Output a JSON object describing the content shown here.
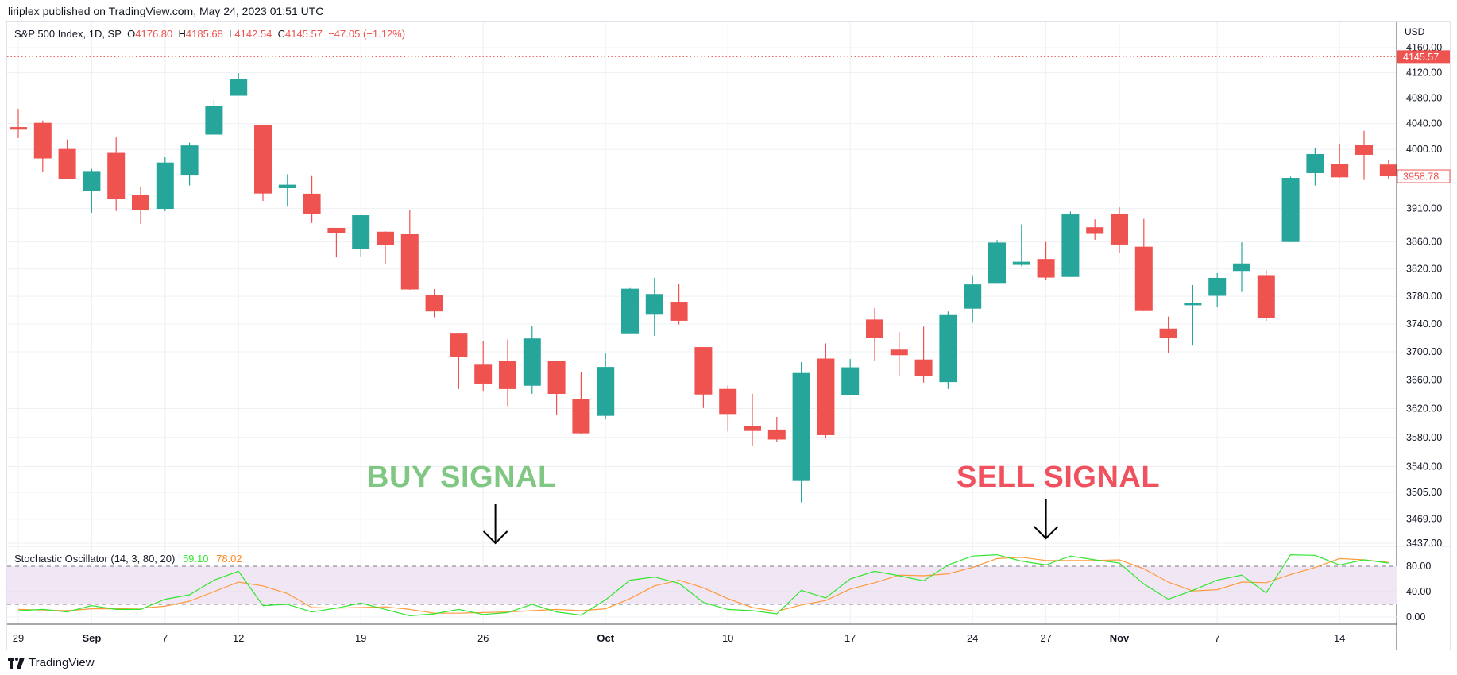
{
  "header": {
    "published": "liriplex published on TradingView.com, May 24, 2023 01:51 UTC"
  },
  "legend": {
    "symbol": "S&P 500 Index, 1D, SP",
    "o_label": "O",
    "o": "4176.80",
    "h_label": "H",
    "h": "4185.68",
    "l_label": "L",
    "l": "4142.54",
    "c_label": "C",
    "c": "4145.57",
    "change": "−47.05 (−1.12%)"
  },
  "oscillator": {
    "title": "Stochastic Oscillator (14, 3, 80, 20)",
    "k_value": "59.10",
    "d_value": "78.02"
  },
  "annotations": {
    "buy": "BUY SIGNAL",
    "sell": "SELL SIGNAL"
  },
  "axis": {
    "currency": "USD",
    "last_price_label": "4145.57",
    "bar_close_label": "3958.78"
  },
  "footer": {
    "brand": "TradingView"
  },
  "colors": {
    "up": "#26a69a",
    "down": "#ef5350",
    "k": "#31e62f",
    "d": "#ff9a3c",
    "band": "#f1e6f3"
  },
  "chart_data": {
    "type": "candlestick",
    "y_scale": "log",
    "price_ticks": [
      "4160.00",
      "4120.00",
      "4080.00",
      "4040.00",
      "4000.00",
      "3910.00",
      "3860.00",
      "3820.00",
      "3780.00",
      "3740.00",
      "3700.00",
      "3660.00",
      "3620.00",
      "3580.00",
      "3540.00",
      "3505.00",
      "3469.00",
      "3437.00"
    ],
    "ylim": [
      3437,
      4160
    ],
    "last_price": 4145.57,
    "x_ticks": [
      {
        "i": 0,
        "label": "29"
      },
      {
        "i": 3,
        "label": "Sep",
        "bold": true
      },
      {
        "i": 6,
        "label": "7"
      },
      {
        "i": 9,
        "label": "12"
      },
      {
        "i": 14,
        "label": "19"
      },
      {
        "i": 19,
        "label": "26"
      },
      {
        "i": 24,
        "label": "Oct",
        "bold": true
      },
      {
        "i": 29,
        "label": "10"
      },
      {
        "i": 34,
        "label": "17"
      },
      {
        "i": 39,
        "label": "24"
      },
      {
        "i": 42,
        "label": "27"
      },
      {
        "i": 45,
        "label": "Nov",
        "bold": true
      },
      {
        "i": 49,
        "label": "7"
      },
      {
        "i": 54,
        "label": "14"
      }
    ],
    "buy_signal_index": 19.5,
    "sell_signal_index": 42,
    "candles": [
      [
        4034.58,
        4062.99,
        4017.42,
        4030.61
      ],
      [
        4041.25,
        4044.98,
        3965.21,
        3986.16
      ],
      [
        4000.67,
        4015.37,
        3954.53,
        3955.0
      ],
      [
        3936.73,
        3970.23,
        3903.65,
        3966.85
      ],
      [
        3994.66,
        4018.43,
        3906.21,
        3924.26
      ],
      [
        3930.89,
        3942.55,
        3886.75,
        3908.19
      ],
      [
        3909.43,
        3987.89,
        3906.03,
        3979.87
      ],
      [
        3959.94,
        4010.5,
        3944.81,
        4006.18
      ],
      [
        4022.94,
        4076.81,
        4022.94,
        4067.36
      ],
      [
        4083.67,
        4119.28,
        4083.67,
        4110.41
      ],
      [
        4037.12,
        4037.12,
        3921.51,
        3932.69
      ],
      [
        3940.73,
        3961.94,
        3912.77,
        3946.01
      ],
      [
        3932.41,
        3959.14,
        3888.28,
        3901.35
      ],
      [
        3880.95,
        3880.95,
        3837.08,
        3873.33
      ],
      [
        3849.91,
        3900.45,
        3838.5,
        3899.89
      ],
      [
        3875.23,
        3876.01,
        3827.54,
        3855.93
      ],
      [
        3871.4,
        3907.07,
        3789.49,
        3789.93
      ],
      [
        3782.36,
        3790.68,
        3749.45,
        3757.99
      ],
      [
        3727.14,
        3727.14,
        3647.47,
        3693.23
      ],
      [
        3682.72,
        3715.67,
        3644.76,
        3655.04
      ],
      [
        3686.44,
        3717.53,
        3623.29,
        3647.29
      ],
      [
        3651.94,
        3736.74,
        3640.61,
        3719.04
      ],
      [
        3687.01,
        3687.01,
        3610.4,
        3640.47
      ],
      [
        3633.48,
        3671.44,
        3584.13,
        3585.62
      ],
      [
        3609.78,
        3698.35,
        3604.93,
        3678.43
      ],
      [
        3726.46,
        3791.92,
        3726.46,
        3790.93
      ],
      [
        3753.25,
        3806.91,
        3722.66,
        3783.28
      ],
      [
        3771.97,
        3797.93,
        3739.22,
        3744.52
      ],
      [
        3706.74,
        3706.74,
        3620.73,
        3639.66
      ],
      [
        3647.51,
        3652.17,
        3588.1,
        3612.39
      ],
      [
        3595.86,
        3640.66,
        3568.45,
        3588.84
      ],
      [
        3590.83,
        3608.34,
        3573.86,
        3577.03
      ],
      [
        3520.37,
        3685.41,
        3491.58,
        3669.91
      ],
      [
        3690.41,
        3712.0,
        3579.68,
        3583.07
      ],
      [
        3638.65,
        3689.73,
        3638.65,
        3677.95
      ],
      [
        3746.26,
        3762.79,
        3686.53,
        3719.98
      ],
      [
        3703.11,
        3728.58,
        3666.51,
        3695.16
      ],
      [
        3689.05,
        3736.0,
        3656.44,
        3665.78
      ],
      [
        3657.1,
        3757.89,
        3647.42,
        3752.75
      ],
      [
        3762.01,
        3810.74,
        3741.65,
        3797.34
      ],
      [
        3799.44,
        3862.85,
        3799.44,
        3859.11
      ],
      [
        3825.97,
        3886.15,
        3824.07,
        3830.6
      ],
      [
        3834.69,
        3859.95,
        3803.79,
        3807.3
      ],
      [
        3808.26,
        3905.42,
        3808.26,
        3901.06
      ],
      [
        3881.85,
        3893.73,
        3863.18,
        3871.98
      ],
      [
        3901.79,
        3911.79,
        3843.8,
        3856.1
      ],
      [
        3852.9,
        3894.44,
        3758.68,
        3759.69
      ],
      [
        3733.25,
        3750.59,
        3698.15,
        3719.89
      ],
      [
        3766.98,
        3796.34,
        3708.84,
        3770.55
      ],
      [
        3780.71,
        3813.95,
        3764.7,
        3806.8
      ],
      [
        3817.02,
        3859.4,
        3786.28,
        3828.11
      ],
      [
        3810.94,
        3818.2,
        3744.22,
        3748.57
      ],
      [
        3859.89,
        3958.33,
        3859.89,
        3956.37
      ],
      [
        3963.72,
        4001.48,
        3944.82,
        3992.93
      ],
      [
        3977.97,
        4008.97,
        3956.4,
        3957.25
      ],
      [
        4006.41,
        4028.84,
        3953.17,
        3991.73
      ],
      [
        3976.82,
        3983.39,
        3954.34,
        3958.79
      ]
    ],
    "stochastic": {
      "ticks": [
        "80.00",
        "40.00",
        "0.00"
      ],
      "ylim": [
        0,
        100
      ],
      "upper_band": 80,
      "lower_band": 20,
      "k": [
        10,
        12,
        8,
        18,
        12,
        12,
        28,
        35,
        58,
        72,
        18,
        20,
        8,
        14,
        22,
        12,
        2,
        5,
        12,
        4,
        7,
        20,
        8,
        3,
        27,
        58,
        63,
        53,
        23,
        12,
        10,
        5,
        42,
        30,
        60,
        72,
        65,
        57,
        82,
        96,
        98,
        88,
        82,
        96,
        90,
        85,
        52,
        28,
        42,
        58,
        66,
        38,
        98,
        97,
        82,
        90,
        85
      ],
      "d": [
        12,
        11,
        10,
        13,
        13,
        14,
        17,
        25,
        40,
        55,
        49,
        37,
        15,
        14,
        15,
        16,
        12,
        6,
        6,
        7,
        8,
        10,
        12,
        10,
        13,
        29,
        49,
        58,
        46,
        29,
        15,
        9,
        19,
        26,
        44,
        54,
        66,
        65,
        68,
        78,
        92,
        94,
        89,
        89,
        89,
        90,
        76,
        55,
        41,
        43,
        55,
        54,
        67,
        78,
        92,
        90,
        86
      ]
    }
  }
}
